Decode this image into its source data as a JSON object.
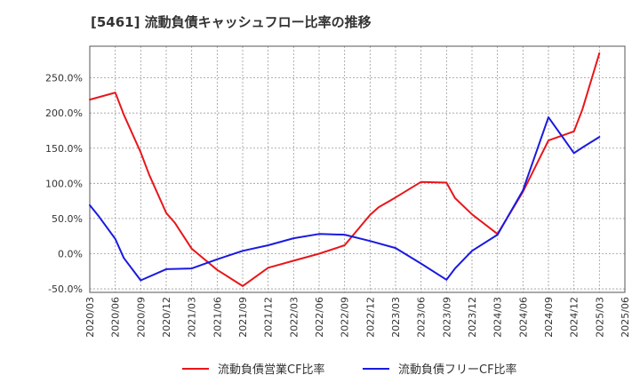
{
  "chart_data": {
    "type": "line",
    "title": "[5461]  流動負債キャッシュフロー比率の推移",
    "xlabel": "",
    "ylabel": "",
    "ylim": [
      -55,
      295
    ],
    "y_ticks": [
      "-50.0%",
      "0.0%",
      "50.0%",
      "100.0%",
      "150.0%",
      "200.0%",
      "250.0%"
    ],
    "y_tick_values": [
      -50,
      0,
      50,
      100,
      150,
      200,
      250
    ],
    "x_ticks": [
      "2020/03",
      "2020/06",
      "2020/09",
      "2020/12",
      "2021/03",
      "2021/06",
      "2021/09",
      "2021/12",
      "2022/03",
      "2022/06",
      "2022/09",
      "2022/12",
      "2023/03",
      "2023/06",
      "2023/09",
      "2023/12",
      "2024/03",
      "2024/06",
      "2024/09",
      "2024/12",
      "2025/03",
      "2025/06"
    ],
    "grid": true,
    "legend_position": "bottom",
    "series": [
      {
        "name": "流動負債営業CF比率",
        "color": "#e8161a",
        "x": [
          "2020/03",
          "2020/06",
          "2020/07",
          "2020/09",
          "2020/10",
          "2020/12",
          "2021/01",
          "2021/03",
          "2021/06",
          "2021/09",
          "2021/12",
          "2022/03",
          "2022/06",
          "2022/09",
          "2022/12",
          "2023/01",
          "2023/03",
          "2023/06",
          "2023/09",
          "2023/10",
          "2023/12",
          "2024/03",
          "2024/06",
          "2024/09",
          "2024/12",
          "2025/01",
          "2025/03"
        ],
        "values": [
          219,
          229,
          198,
          144,
          112,
          58,
          44,
          7,
          -23,
          -46,
          -20,
          -10,
          0,
          12,
          55,
          66,
          80,
          102,
          101,
          79,
          56,
          28,
          88,
          161,
          174,
          205,
          285
        ]
      },
      {
        "name": "流動負債フリーCF比率",
        "color": "#1a1ae0",
        "x": [
          "2020/03",
          "2020/04",
          "2020/06",
          "2020/07",
          "2020/09",
          "2020/12",
          "2021/03",
          "2021/06",
          "2021/09",
          "2021/12",
          "2022/03",
          "2022/06",
          "2022/09",
          "2022/12",
          "2023/03",
          "2023/06",
          "2023/09",
          "2023/10",
          "2023/12",
          "2024/03",
          "2024/06",
          "2024/09",
          "2024/12",
          "2025/01",
          "2025/03"
        ],
        "values": [
          69,
          54,
          21,
          -6,
          -38,
          -22,
          -21,
          -8,
          4,
          12,
          22,
          28,
          27,
          18,
          8,
          -14,
          -37,
          -21,
          4,
          27,
          90,
          194,
          143,
          151,
          166
        ]
      }
    ]
  }
}
